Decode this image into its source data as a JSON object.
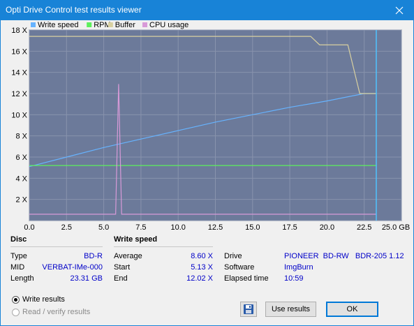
{
  "window": {
    "title": "Opti Drive Control test results viewer",
    "title_bg": "#1883d7"
  },
  "legend": [
    {
      "label": "Write speed",
      "color": "#66b3ff"
    },
    {
      "label": "RPM",
      "color": "#5cf05c"
    },
    {
      "label": "Buffer",
      "color": "#d8d0a0"
    },
    {
      "label": "CPU usage",
      "color": "#d89ad8"
    }
  ],
  "chart_data": {
    "type": "line",
    "xlim": [
      0,
      25
    ],
    "ylim": [
      0,
      18
    ],
    "x_ticks": [
      "0.0",
      "2.5",
      "5.0",
      "7.5",
      "10.0",
      "12.5",
      "15.0",
      "17.5",
      "20.0",
      "22.5",
      "25.0 GB"
    ],
    "y_ticks": [
      "2 X",
      "4 X",
      "6 X",
      "8 X",
      "10 X",
      "12 X",
      "14 X",
      "16 X",
      "18 X"
    ],
    "plot_bg": "#6c7a9a",
    "series": [
      {
        "name": "Write speed",
        "x": [
          0,
          2.5,
          5,
          7.5,
          10,
          12.5,
          15,
          17.5,
          20,
          22.5,
          23.3
        ],
        "y": [
          5.1,
          6.0,
          6.9,
          7.7,
          8.5,
          9.3,
          10.0,
          10.7,
          11.3,
          12.0,
          12.0
        ]
      },
      {
        "name": "RPM",
        "x": [
          0,
          5,
          10,
          15,
          20,
          23.3
        ],
        "y": [
          5.2,
          5.2,
          5.2,
          5.2,
          5.2,
          5.2
        ]
      },
      {
        "name": "Buffer",
        "x": [
          0,
          5,
          10,
          15,
          18.9,
          19.5,
          21.4,
          22.2,
          23.3
        ],
        "y": [
          17.4,
          17.4,
          17.4,
          17.4,
          17.4,
          16.6,
          16.6,
          12,
          12
        ]
      },
      {
        "name": "CPU usage",
        "x": [
          0,
          2.5,
          5,
          5.8,
          6.0,
          6.2,
          7.5,
          10,
          12.5,
          15,
          17.5,
          20,
          22.5,
          23.3
        ],
        "y": [
          0.6,
          0.6,
          0.6,
          0.6,
          12.9,
          0.6,
          0.6,
          0.6,
          0.6,
          0.6,
          0.6,
          0.6,
          0.6,
          0.6
        ]
      }
    ],
    "end_marker_x": 23.31
  },
  "disc": {
    "heading": "Disc",
    "rows": [
      {
        "label": "Type",
        "value": "BD-R"
      },
      {
        "label": "MID",
        "value": "VERBAT-IMe-000"
      },
      {
        "label": "Length",
        "value": "23.31 GB"
      }
    ]
  },
  "write_speed": {
    "heading": "Write speed",
    "rows": [
      {
        "label": "Average",
        "value": "8.60 X"
      },
      {
        "label": "Start",
        "value": "5.13 X"
      },
      {
        "label": "End",
        "value": "12.02 X"
      }
    ]
  },
  "drive_info": {
    "rows": [
      {
        "label": "Drive",
        "value": "PIONEER  BD-RW   BDR-205 1.12"
      },
      {
        "label": "Software",
        "value": "ImgBurn"
      },
      {
        "label": "Elapsed time",
        "value": "10:59"
      }
    ]
  },
  "options": {
    "write_results": "Write results",
    "read_verify": "Read / verify results"
  },
  "buttons": {
    "use_results": "Use results",
    "ok": "OK"
  }
}
